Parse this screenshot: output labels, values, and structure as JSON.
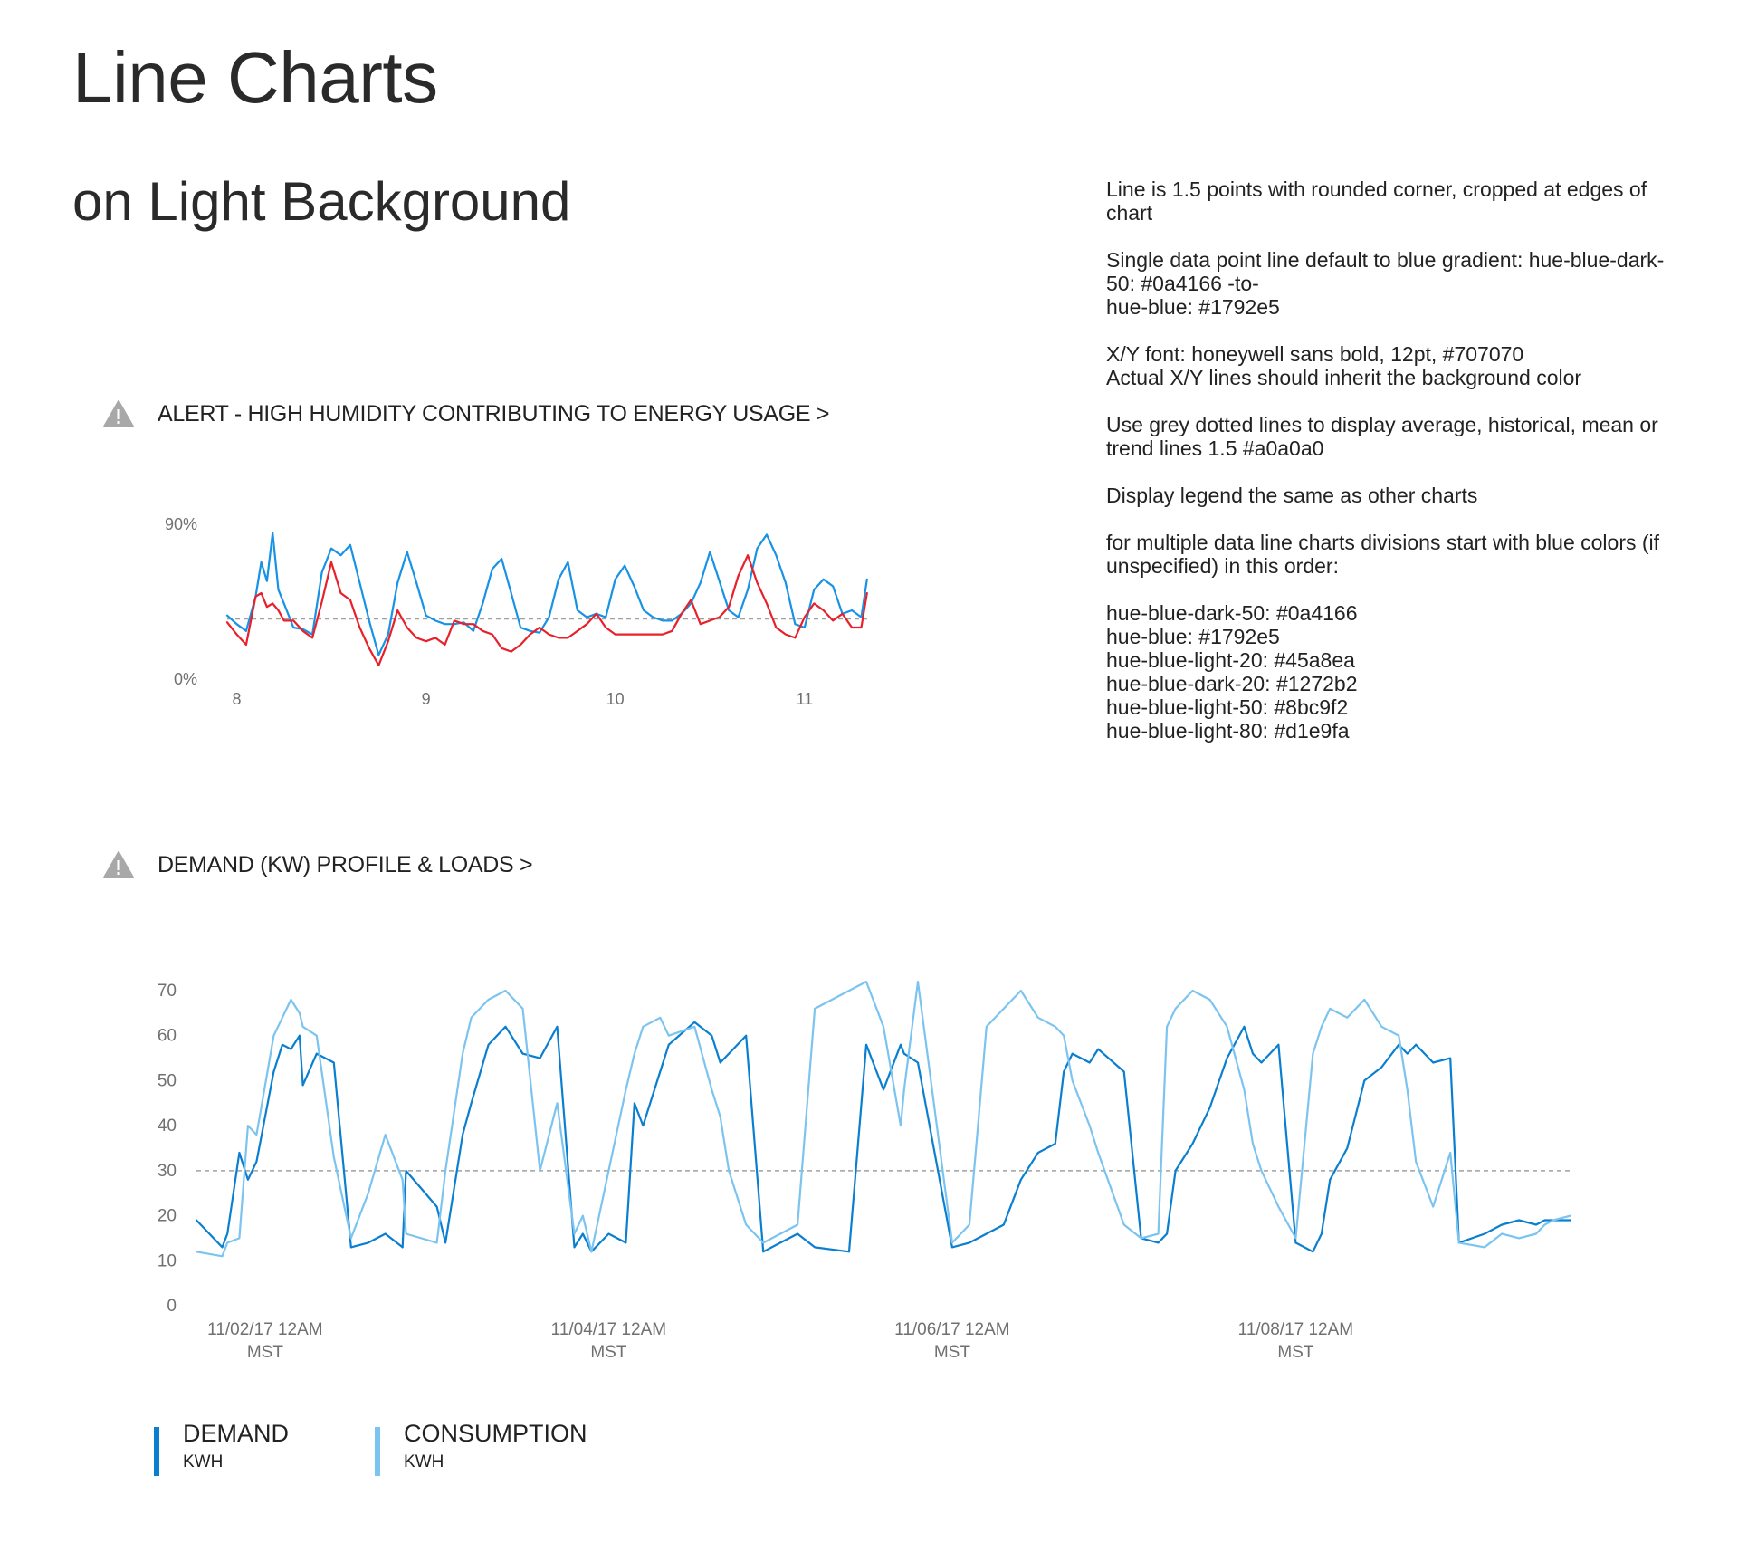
{
  "page": {
    "title": "Line Charts",
    "subtitle": "on Light Background"
  },
  "notes": [
    "Line is 1.5 points with rounded corner, cropped at edges of chart",
    "Single data point line default to blue gradient: hue-blue-dark-50: #0a4166 -to-\nhue-blue: #1792e5",
    "X/Y font: honeywell sans bold, 12pt, #707070\nActual X/Y lines should inherit the background color",
    "Use grey dotted lines to display average, historical, mean or trend lines 1.5 #a0a0a0",
    "Display legend the same as other charts",
    "for multiple data line charts divisions start with blue colors (if unspecified) in this order:",
    "hue-blue-dark-50: #0a4166\nhue-blue: #1792e5\nhue-blue-light-20: #45a8ea\nhue-blue-dark-20: #1272b2\nhue-blue-light-50: #8bc9f2\nhue-blue-light-80: #d1e9fa"
  ],
  "colors": {
    "warning_icon": "#a8a8a8",
    "axis_text": "#707070",
    "average_line": "#a0a0a0",
    "demand": "#0a7fd0",
    "consumption": "#7cc4f0",
    "humidity_blue": "#1792e5",
    "humidity_red": "#e8202a"
  },
  "chart_data": [
    {
      "type": "line",
      "title": "ALERT - HIGH HUMIDITY CONTRIBUTING TO ENERGY USAGE >",
      "icon": "warning-icon",
      "ylim": [
        0,
        90
      ],
      "y_ticks": [
        {
          "value": 0,
          "label": "0%"
        },
        {
          "value": 90,
          "label": "90%"
        }
      ],
      "xlim": [
        7.95,
        11.35
      ],
      "x_ticks": [
        {
          "value": 8,
          "label": "8"
        },
        {
          "value": 9,
          "label": "9"
        },
        {
          "value": 10,
          "label": "10"
        },
        {
          "value": 11,
          "label": "11"
        }
      ],
      "average": 35,
      "x": [
        7.95,
        8.0,
        8.05,
        8.1,
        8.13,
        8.16,
        8.19,
        8.22,
        8.25,
        8.3,
        8.35,
        8.4,
        8.45,
        8.5,
        8.55,
        8.6,
        8.65,
        8.7,
        8.75,
        8.8,
        8.85,
        8.9,
        8.95,
        9.0,
        9.05,
        9.1,
        9.15,
        9.2,
        9.25,
        9.3,
        9.35,
        9.4,
        9.45,
        9.5,
        9.55,
        9.6,
        9.65,
        9.7,
        9.75,
        9.8,
        9.85,
        9.9,
        9.95,
        10.0,
        10.05,
        10.1,
        10.15,
        10.2,
        10.25,
        10.3,
        10.35,
        10.4,
        10.45,
        10.5,
        10.55,
        10.6,
        10.65,
        10.7,
        10.75,
        10.8,
        10.85,
        10.9,
        10.95,
        11.0,
        11.05,
        11.1,
        11.15,
        11.2,
        11.25,
        11.3,
        11.33
      ],
      "series": [
        {
          "color": "#1792e5",
          "values": [
            37,
            32,
            28,
            48,
            68,
            57,
            85,
            52,
            44,
            30,
            29,
            26,
            62,
            76,
            72,
            78,
            56,
            34,
            14,
            26,
            56,
            74,
            56,
            37,
            34,
            32,
            32,
            33,
            28,
            44,
            64,
            70,
            50,
            30,
            28,
            27,
            36,
            58,
            68,
            40,
            36,
            38,
            36,
            58,
            66,
            54,
            40,
            36,
            34,
            34,
            38,
            44,
            56,
            74,
            57,
            40,
            36,
            52,
            76,
            84,
            72,
            56,
            32,
            30,
            52,
            58,
            54,
            38,
            40,
            36,
            58
          ]
        },
        {
          "color": "#e8202a",
          "values": [
            33,
            26,
            20,
            48,
            50,
            42,
            44,
            40,
            34,
            34,
            28,
            24,
            45,
            68,
            50,
            46,
            30,
            18,
            8,
            22,
            40,
            30,
            24,
            22,
            24,
            20,
            34,
            32,
            32,
            28,
            26,
            18,
            16,
            20,
            26,
            30,
            26,
            24,
            24,
            28,
            32,
            38,
            30,
            26,
            26,
            26,
            26,
            26,
            26,
            28,
            38,
            46,
            32,
            34,
            36,
            42,
            60,
            72,
            56,
            44,
            30,
            26,
            24,
            36,
            44,
            40,
            34,
            38,
            30,
            30,
            50
          ]
        }
      ]
    },
    {
      "type": "line",
      "title": "DEMAND (KW) PROFILE & LOADS >",
      "icon": "warning-icon",
      "ylim": [
        0,
        70
      ],
      "y_ticks": [
        0,
        10,
        20,
        30,
        40,
        50,
        60,
        70
      ],
      "xlim": [
        0,
        8
      ],
      "x_ticks": [
        {
          "value": 0.4,
          "line1": "11/02/17 12AM",
          "line2": "MST"
        },
        {
          "value": 2.4,
          "line1": "11/04/17 12AM",
          "line2": "MST"
        },
        {
          "value": 4.4,
          "line1": "11/06/17 12AM",
          "line2": "MST"
        },
        {
          "value": 6.4,
          "line1": "11/08/17 12AM",
          "line2": "MST"
        }
      ],
      "average": 30,
      "x": [
        0.0,
        0.15,
        0.18,
        0.25,
        0.3,
        0.35,
        0.45,
        0.5,
        0.55,
        0.6,
        0.62,
        0.7,
        0.8,
        0.9,
        1.0,
        1.1,
        1.2,
        1.22,
        1.4,
        1.45,
        1.55,
        1.6,
        1.7,
        1.8,
        1.9,
        2.0,
        2.1,
        2.2,
        2.25,
        2.3,
        2.4,
        2.5,
        2.55,
        2.6,
        2.7,
        2.75,
        2.9,
        3.0,
        3.05,
        3.1,
        3.2,
        3.3,
        3.4,
        3.5,
        3.6,
        3.8,
        3.9,
        4.0,
        4.1,
        4.12,
        4.2,
        4.4,
        4.5,
        4.55,
        4.6,
        4.7,
        4.8,
        4.9,
        5.0,
        5.05,
        5.1,
        5.2,
        5.25,
        5.4,
        5.5,
        5.6,
        5.65,
        5.7,
        5.8,
        5.9,
        6.0,
        6.1,
        6.15,
        6.2,
        6.3,
        6.4,
        6.5,
        6.55,
        6.6,
        6.7,
        6.8,
        6.9,
        7.0,
        7.05,
        7.1,
        7.2,
        7.3,
        7.35,
        7.5,
        7.6,
        7.7,
        7.8,
        7.85,
        7.9,
        8.0
      ],
      "series": [
        {
          "name": "DEMAND",
          "unit": "KWH",
          "color": "#0a7fd0",
          "values": [
            19,
            13,
            16,
            34,
            28,
            32,
            52,
            58,
            57,
            60,
            49,
            56,
            54,
            13,
            14,
            16,
            13,
            30,
            22,
            14,
            38,
            45,
            58,
            62,
            56,
            55,
            62,
            13,
            16,
            12,
            16,
            14,
            45,
            40,
            52,
            58,
            63,
            60,
            54,
            56,
            60,
            12,
            14,
            16,
            13,
            12,
            58,
            48,
            58,
            56,
            54,
            13,
            14,
            15,
            16,
            18,
            28,
            34,
            36,
            52,
            56,
            54,
            57,
            52,
            15,
            14,
            16,
            30,
            36,
            44,
            55,
            62,
            56,
            54,
            58,
            14,
            12,
            16,
            28,
            35,
            50,
            53,
            58,
            56,
            58,
            54,
            55,
            14,
            16,
            18,
            19,
            18,
            19,
            19,
            19
          ],
          "legend_name": "DEMAND",
          "legend_unit": "KWH"
        },
        {
          "name": "CONSUMPTION",
          "unit": "KWH",
          "color": "#7cc4f0",
          "values": [
            12,
            11,
            14,
            15,
            40,
            38,
            60,
            64,
            68,
            65,
            62,
            60,
            33,
            15,
            25,
            38,
            28,
            16,
            14,
            30,
            56,
            64,
            68,
            70,
            66,
            30,
            45,
            16,
            20,
            12,
            30,
            48,
            56,
            62,
            64,
            60,
            62,
            48,
            42,
            30,
            18,
            14,
            16,
            18,
            66,
            70,
            72,
            62,
            40,
            48,
            72,
            14,
            18,
            40,
            62,
            66,
            70,
            64,
            62,
            60,
            50,
            40,
            34,
            18,
            15,
            16,
            62,
            66,
            70,
            68,
            62,
            48,
            36,
            30,
            22,
            15,
            56,
            62,
            66,
            64,
            68,
            62,
            60,
            48,
            32,
            22,
            34,
            14,
            13,
            16,
            15,
            16,
            18,
            19,
            20
          ],
          "legend_name": "CONSUMPTION",
          "legend_unit": "KWH"
        }
      ]
    }
  ]
}
